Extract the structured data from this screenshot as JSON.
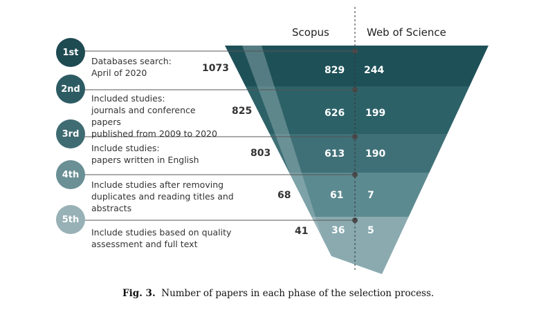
{
  "columns": {
    "left": "Scopus",
    "right": "Web of Science"
  },
  "phases": [
    {
      "label": "1st",
      "description": "Databases search:\nApril of 2020",
      "total": "1073",
      "scopus": "829",
      "wos": "244"
    },
    {
      "label": "2nd",
      "description": "Included studies:\njournals and conference papers\npublished from 2009 to 2020",
      "total": "825",
      "scopus": "626",
      "wos": "199"
    },
    {
      "label": "3rd",
      "description": "Include studies:\npapers written in English",
      "total": "803",
      "scopus": "613",
      "wos": "190"
    },
    {
      "label": "4th",
      "description": "Include studies after removing\nduplicates and reading titles and\nabstracts",
      "total": "68",
      "scopus": "61",
      "wos": "7"
    },
    {
      "label": "5th",
      "description": "Include studies based on quality\nassessment and full text",
      "total": "41",
      "scopus": "36",
      "wos": "5"
    }
  ],
  "caption": {
    "label": "Fig. 3.",
    "text": "Number of papers in each phase of the selection process."
  },
  "colors": {
    "band1": "#1e5058",
    "band2": "#2d6168",
    "band3": "#3f7077",
    "band4": "#5c8a91",
    "band5": "#8aaab0",
    "badge1": "#1e4a52",
    "badge2": "#2d5b63",
    "badge3": "#3f6b72",
    "badge4": "#6a8f95",
    "badge5": "#98b1b6",
    "ribbon": "#b9cdd1",
    "rule": "#555555"
  }
}
